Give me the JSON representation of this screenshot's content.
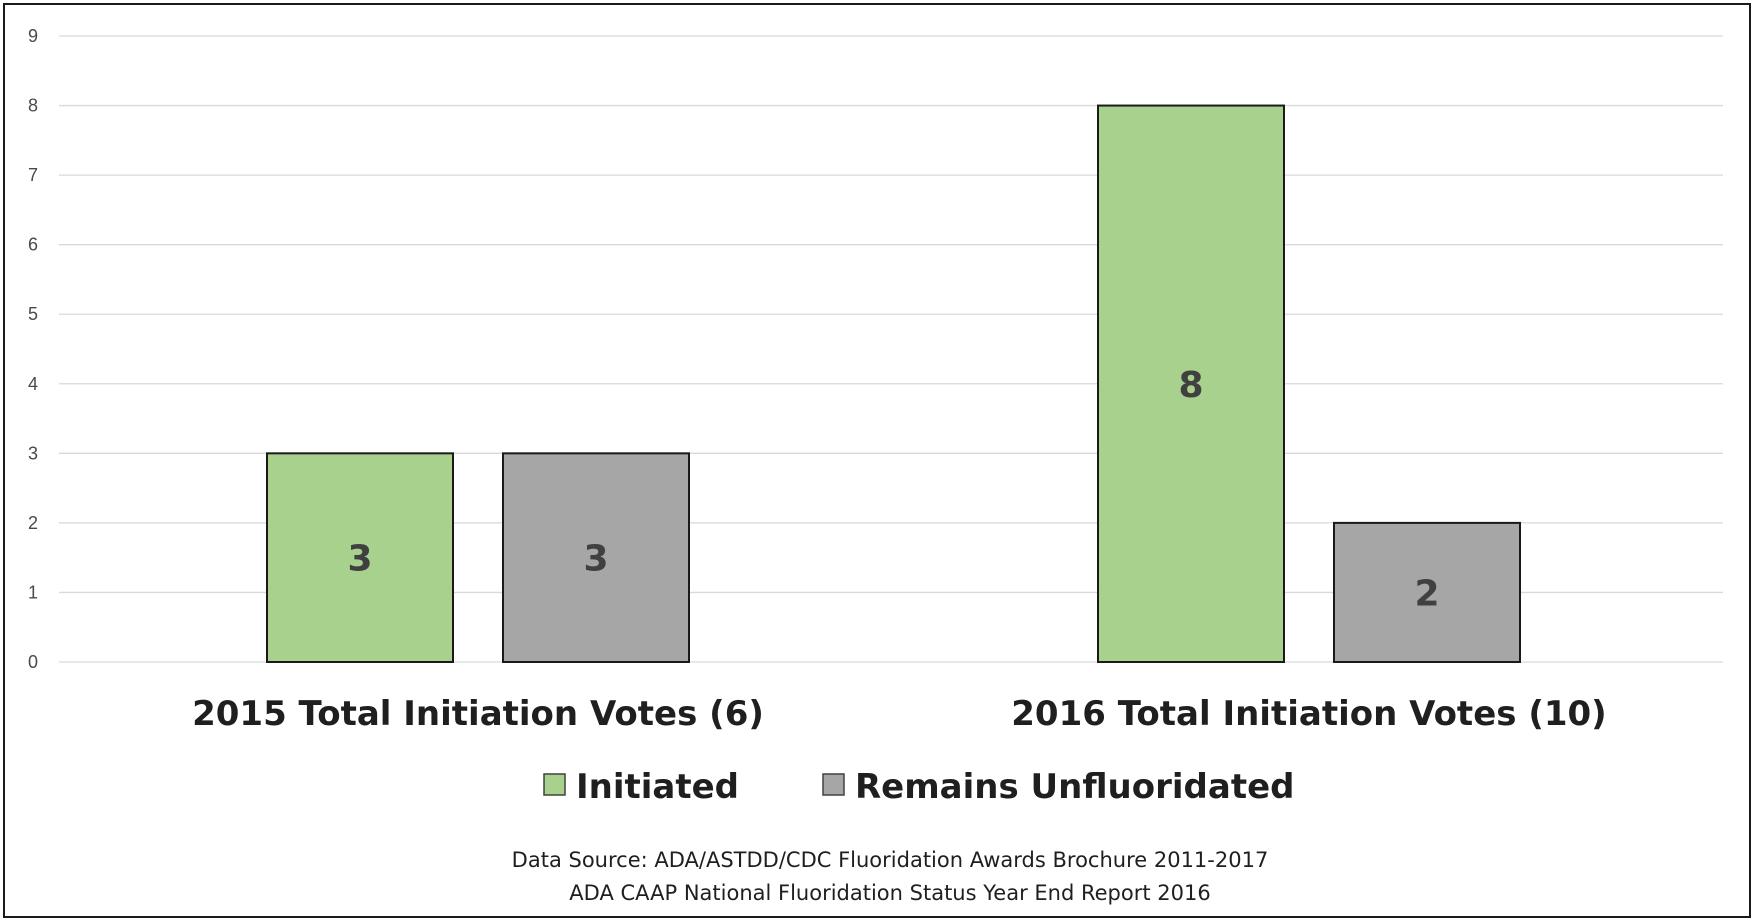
{
  "chart_data": {
    "type": "bar",
    "categories": [
      "2015 Total Initiation Votes (6)",
      "2016 Total Initiation Votes (10)"
    ],
    "series": [
      {
        "name": "Initiated",
        "values": [
          3,
          8
        ],
        "color": "#a9d18e"
      },
      {
        "name": "Remains Unfluoridated",
        "values": [
          3,
          2
        ],
        "color": "#a6a6a6"
      }
    ],
    "ylim": [
      0,
      9
    ],
    "yticks": [
      "0",
      "1",
      "2",
      "3",
      "4",
      "5",
      "6",
      "7",
      "8",
      "9"
    ],
    "grid": true,
    "legend_position": "bottom",
    "data_labels": true,
    "bar_outline_color": "#1a1a1a",
    "gridline_color": "#d9d9d9"
  },
  "source_lines": [
    "Data Source: ADA/ASTDD/CDC Fluoridation Awards Brochure 2011-2017",
    "ADA CAAP National Fluoridation Status Year End Report 2016"
  ]
}
